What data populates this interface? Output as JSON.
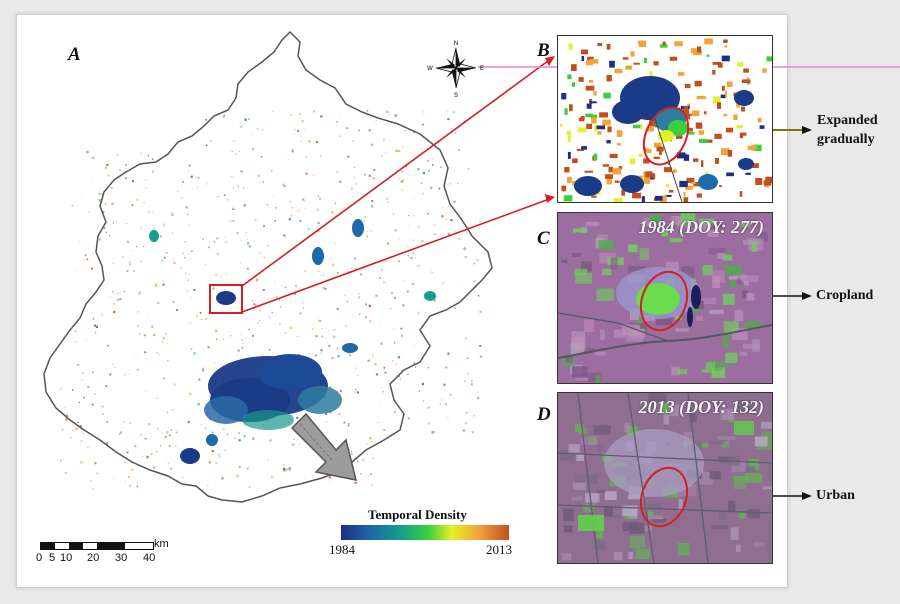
{
  "panels": {
    "a": "A",
    "b": "B",
    "c": "C",
    "d": "D"
  },
  "insets": {
    "c_title": "1984 (DOY: 277)",
    "d_title": "2013 (DOY: 132)"
  },
  "callouts": {
    "b_line1": "Expanded",
    "b_line2": "gradually",
    "c": "Cropland",
    "d": "Urban"
  },
  "legend": {
    "title": "Temporal Density",
    "min": "1984",
    "max": "2013",
    "colors": [
      "#1b2f86",
      "#1d6aa8",
      "#13a08b",
      "#3ccf3c",
      "#e6f02a",
      "#f2a33a",
      "#c2501f"
    ]
  },
  "scale_bar": {
    "unit": "km",
    "labels": [
      "0",
      "5",
      "10",
      "20",
      "30",
      "40"
    ]
  },
  "compass": {
    "n": "N",
    "s": "S",
    "e": "E",
    "w": "W"
  },
  "colors": {
    "arrow_red": "#d42020",
    "boundary": "#555555",
    "urban_core": "#1b3b86"
  }
}
